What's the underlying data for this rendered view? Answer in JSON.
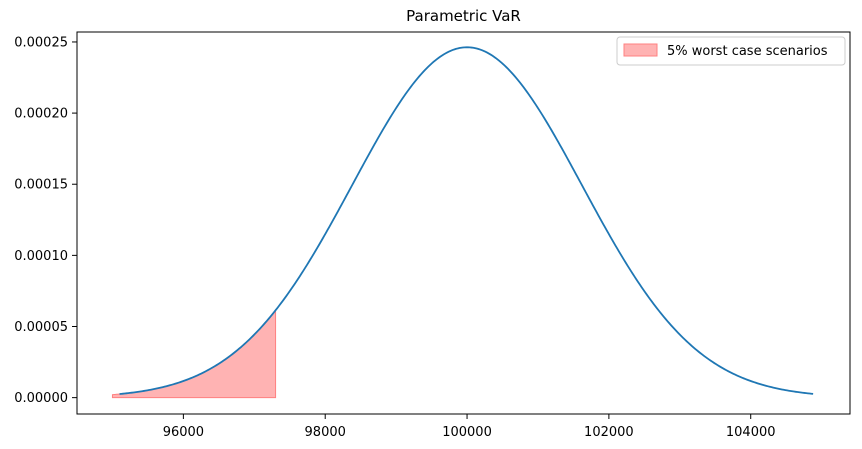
{
  "chart_data": {
    "type": "line",
    "title": "Parametric VaR",
    "xlabel": "",
    "ylabel": "",
    "xlim": [
      94500,
      105400
    ],
    "ylim": [
      -1.15e-05,
      0.000257
    ],
    "x_ticks": [
      96000,
      98000,
      100000,
      102000,
      104000
    ],
    "x_tick_labels": [
      "96000",
      "98000",
      "100000",
      "102000",
      "104000"
    ],
    "y_ticks": [
      0,
      5e-05,
      0.0001,
      0.00015,
      0.0002,
      0.00025
    ],
    "y_tick_labels": [
      "0.00000",
      "0.00005",
      "0.00010",
      "0.00015",
      "0.00020",
      "0.00025"
    ],
    "grid": false,
    "legend_position": "top-right",
    "series": [
      {
        "type": "line",
        "distribution": "normal",
        "mean": 100000,
        "std": 1620,
        "x_range": [
          95100,
          104880
        ],
        "color": "#1f77b4"
      }
    ],
    "fill": {
      "name": "5% worst case scenarios",
      "x_range": [
        95000,
        97300
      ],
      "color": "#ff9999",
      "edge_color": "#ff8080"
    }
  }
}
